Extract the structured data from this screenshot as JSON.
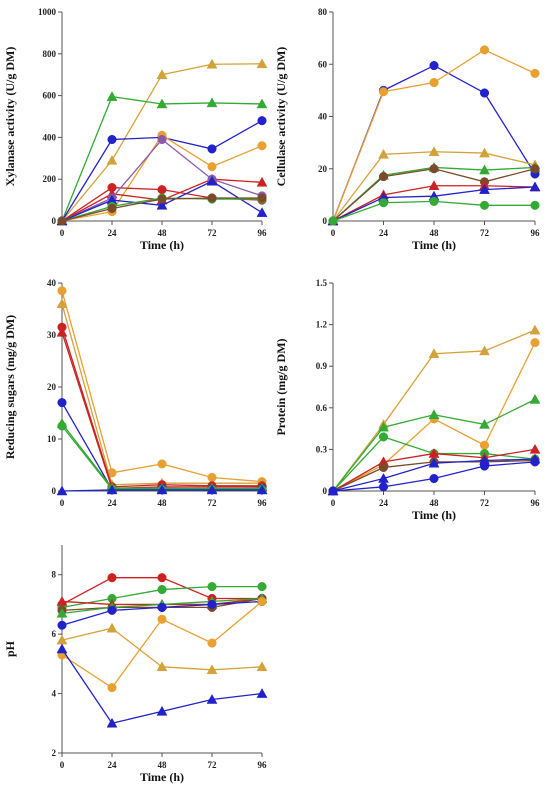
{
  "colors": {
    "blue": "#2222cc",
    "orange": "#e8a030",
    "gold": "#d4a23a",
    "green": "#33aa33",
    "red": "#cc2222",
    "brown": "#7a4a2a",
    "purple": "#8a5aa8"
  },
  "chart_data": [
    {
      "id": "xylanase",
      "type": "line",
      "xlabel": "Time (h)",
      "ylabel": "Xylanase activity (U/g DM)",
      "x": [
        0,
        24,
        48,
        72,
        96
      ],
      "xlim": [
        0,
        96
      ],
      "ylim": [
        0,
        1000
      ],
      "xticks": [
        "0",
        "24",
        "48",
        "72",
        "96"
      ],
      "yticks": [
        "0",
        "200",
        "400",
        "600",
        "800",
        "1000"
      ],
      "series": [
        {
          "color": "gold",
          "marker": "triangle",
          "values": [
            0,
            290,
            700,
            750,
            752
          ]
        },
        {
          "color": "green",
          "marker": "triangle",
          "values": [
            0,
            595,
            560,
            565,
            560
          ]
        },
        {
          "color": "blue",
          "marker": "circle",
          "values": [
            0,
            390,
            400,
            345,
            480
          ]
        },
        {
          "color": "orange",
          "marker": "circle",
          "values": [
            0,
            45,
            410,
            260,
            360
          ]
        },
        {
          "color": "red",
          "marker": "circle",
          "values": [
            0,
            160,
            150,
            110,
            100
          ]
        },
        {
          "color": "red",
          "marker": "triangle",
          "values": [
            0,
            130,
            100,
            200,
            185
          ]
        },
        {
          "color": "purple",
          "marker": "circle",
          "values": [
            0,
            110,
            390,
            200,
            120
          ]
        },
        {
          "color": "blue",
          "marker": "triangle",
          "values": [
            0,
            100,
            75,
            190,
            40
          ]
        },
        {
          "color": "green",
          "marker": "circle",
          "values": [
            0,
            70,
            110,
            105,
            105
          ]
        },
        {
          "color": "brown",
          "marker": "circle",
          "values": [
            0,
            60,
            105,
            110,
            110
          ]
        }
      ]
    },
    {
      "id": "cellulase",
      "type": "line",
      "xlabel": "Time (h)",
      "ylabel": "Cellulase activity (U/g DM)",
      "x": [
        0,
        24,
        48,
        72,
        96
      ],
      "xlim": [
        0,
        96
      ],
      "ylim": [
        0,
        80
      ],
      "xticks": [
        "0",
        "24",
        "48",
        "72",
        "96"
      ],
      "yticks": [
        "0",
        "20",
        "40",
        "60",
        "80"
      ],
      "series": [
        {
          "color": "blue",
          "marker": "circle",
          "values": [
            0,
            50,
            59.5,
            49,
            18
          ]
        },
        {
          "color": "orange",
          "marker": "circle",
          "values": [
            0,
            49.5,
            53,
            65.5,
            56.5
          ]
        },
        {
          "color": "gold",
          "marker": "triangle",
          "values": [
            0,
            25.5,
            26.5,
            26,
            21.5
          ]
        },
        {
          "color": "green",
          "marker": "triangle",
          "values": [
            0,
            17.5,
            20.5,
            19.5,
            20.5
          ]
        },
        {
          "color": "brown",
          "marker": "circle",
          "values": [
            0,
            17,
            20,
            15,
            20
          ]
        },
        {
          "color": "red",
          "marker": "triangle",
          "values": [
            0,
            10,
            13.5,
            13.5,
            13
          ]
        },
        {
          "color": "blue",
          "marker": "triangle",
          "values": [
            0,
            9,
            9.5,
            12,
            13
          ]
        },
        {
          "color": "green",
          "marker": "circle",
          "values": [
            0,
            7,
            7.5,
            6,
            6
          ]
        }
      ]
    },
    {
      "id": "reducing-sugars",
      "type": "line",
      "xlabel": "",
      "ylabel": "Reducing sugars (mg/g DM)",
      "x": [
        0,
        24,
        48,
        72,
        96
      ],
      "xlim": [
        0,
        96
      ],
      "ylim": [
        0,
        40
      ],
      "xticks": [
        "0",
        "24",
        "48",
        "72",
        "96"
      ],
      "yticks": [
        "0",
        "10",
        "20",
        "30",
        "40"
      ],
      "series": [
        {
          "color": "orange",
          "marker": "circle",
          "values": [
            38.5,
            3.5,
            5.2,
            2.6,
            1.8
          ]
        },
        {
          "color": "gold",
          "marker": "triangle",
          "values": [
            36,
            1.2,
            1.5,
            1.5,
            1.5
          ]
        },
        {
          "color": "red",
          "marker": "circle",
          "values": [
            31.5,
            0.8,
            1.2,
            1.0,
            1.0
          ]
        },
        {
          "color": "red",
          "marker": "triangle",
          "values": [
            30.5,
            0.5,
            0.8,
            0.8,
            0.8
          ]
        },
        {
          "color": "blue",
          "marker": "circle",
          "values": [
            17,
            0.3,
            0.5,
            0.4,
            0.5
          ]
        },
        {
          "color": "green",
          "marker": "triangle",
          "values": [
            13,
            0.6,
            0.5,
            0.5,
            0.5
          ]
        },
        {
          "color": "green",
          "marker": "circle",
          "values": [
            12.5,
            0.4,
            0.3,
            0.3,
            0.3
          ]
        },
        {
          "color": "blue",
          "marker": "triangle",
          "values": [
            0,
            0.2,
            0.2,
            0.2,
            0.2
          ]
        }
      ]
    },
    {
      "id": "protein",
      "type": "line",
      "xlabel": "Time (h)",
      "ylabel": "Protein (mg/g DM)",
      "x": [
        0,
        24,
        48,
        72,
        96
      ],
      "xlim": [
        0,
        96
      ],
      "ylim": [
        0,
        1.5
      ],
      "xticks": [
        "0",
        "24",
        "48",
        "72",
        "96"
      ],
      "yticks": [
        "0",
        "0.3",
        "0.6",
        "0.9",
        "1.2",
        "1.5"
      ],
      "series": [
        {
          "color": "gold",
          "marker": "triangle",
          "values": [
            0,
            0.48,
            0.99,
            1.01,
            1.16
          ]
        },
        {
          "color": "orange",
          "marker": "circle",
          "values": [
            0,
            0.19,
            0.52,
            0.33,
            1.07
          ]
        },
        {
          "color": "green",
          "marker": "triangle",
          "values": [
            0,
            0.46,
            0.55,
            0.48,
            0.66
          ]
        },
        {
          "color": "green",
          "marker": "circle",
          "values": [
            0,
            0.39,
            0.27,
            0.27,
            0.23
          ]
        },
        {
          "color": "red",
          "marker": "triangle",
          "values": [
            0,
            0.21,
            0.27,
            0.24,
            0.3
          ]
        },
        {
          "color": "brown",
          "marker": "circle",
          "values": [
            0,
            0.17,
            0.21,
            0.21,
            0.22
          ]
        },
        {
          "color": "blue",
          "marker": "triangle",
          "values": [
            0,
            0.09,
            0.2,
            0.22,
            0.23
          ]
        },
        {
          "color": "blue",
          "marker": "circle",
          "values": [
            0,
            0.03,
            0.09,
            0.18,
            0.21
          ]
        }
      ]
    },
    {
      "id": "ph",
      "type": "line",
      "xlabel": "Time (h)",
      "ylabel": "pH",
      "x": [
        0,
        24,
        48,
        72,
        96
      ],
      "xlim": [
        0,
        96
      ],
      "ylim": [
        2,
        9
      ],
      "xticks": [
        "0",
        "24",
        "48",
        "72",
        "96"
      ],
      "yticks": [
        "2",
        "4",
        "6",
        "8"
      ],
      "series": [
        {
          "color": "red",
          "marker": "circle",
          "values": [
            7.0,
            7.9,
            7.9,
            7.2,
            7.2
          ]
        },
        {
          "color": "green",
          "marker": "circle",
          "values": [
            6.9,
            7.2,
            7.5,
            7.6,
            7.6
          ]
        },
        {
          "color": "red",
          "marker": "triangle",
          "values": [
            7.1,
            7.0,
            7.0,
            7.0,
            7.2
          ]
        },
        {
          "color": "brown",
          "marker": "circle",
          "values": [
            6.8,
            6.9,
            6.9,
            6.9,
            7.2
          ]
        },
        {
          "color": "green",
          "marker": "triangle",
          "values": [
            6.7,
            6.9,
            7.0,
            7.1,
            7.2
          ]
        },
        {
          "color": "blue",
          "marker": "circle",
          "values": [
            6.3,
            6.8,
            6.9,
            7.0,
            7.1
          ]
        },
        {
          "color": "orange",
          "marker": "circle",
          "values": [
            5.3,
            4.2,
            6.5,
            5.7,
            7.1
          ]
        },
        {
          "color": "gold",
          "marker": "triangle",
          "values": [
            5.8,
            6.2,
            4.9,
            4.8,
            4.9
          ]
        },
        {
          "color": "blue",
          "marker": "triangle",
          "values": [
            5.5,
            3.0,
            3.4,
            3.8,
            4.0
          ]
        }
      ]
    }
  ]
}
